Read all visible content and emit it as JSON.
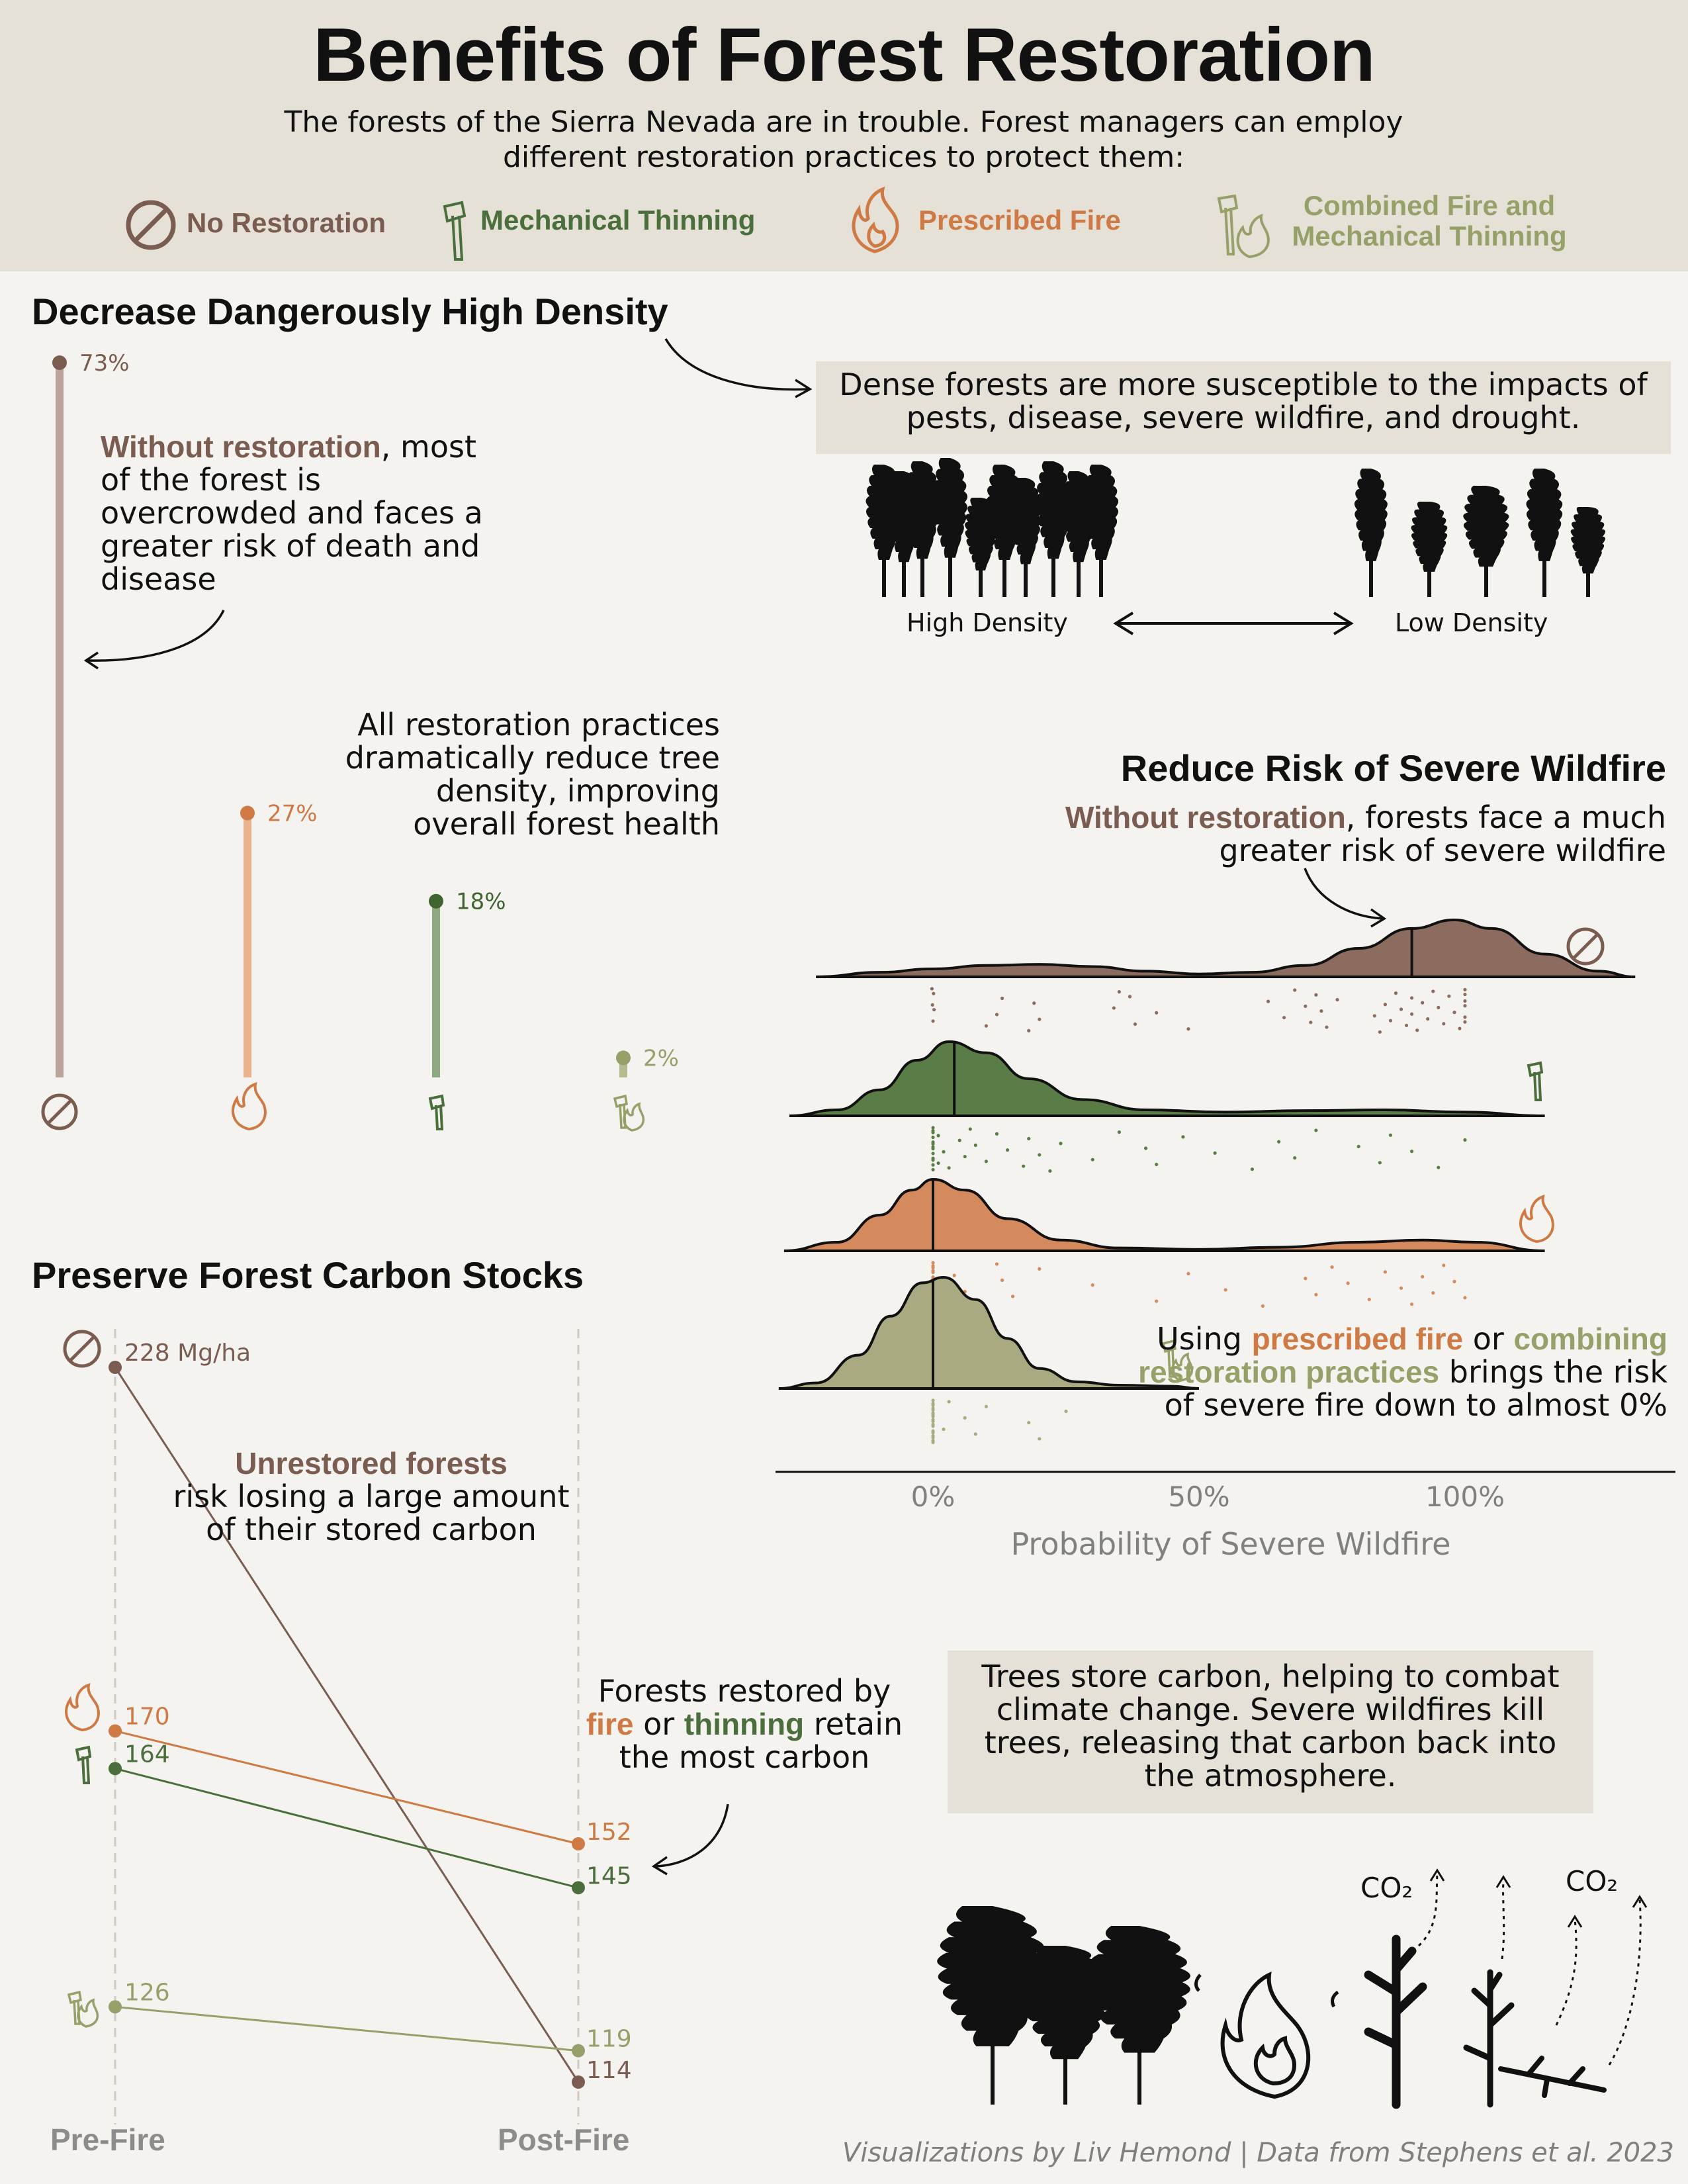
{
  "title": "Benefits of Forest Restoration",
  "subtitle": "The forests of the Sierra Nevada are in trouble. Forest managers can employ different restoration practices to protect them:",
  "legend": [
    {
      "label": "No Restoration",
      "color": "#7a5c50",
      "icon": "no-restoration-icon"
    },
    {
      "label": "Mechanical Thinning",
      "color": "#4a6e3c",
      "icon": "axe-icon"
    },
    {
      "label": "Prescribed Fire",
      "color": "#cf7a45",
      "icon": "fire-icon"
    },
    {
      "label": "Combined Fire and Mechanical Thinning",
      "color": "#98a06a",
      "icon": "axe-fire-icon"
    }
  ],
  "density": {
    "title": "Decrease Dangerously High Density",
    "box_text": "Dense forests are more susceptible to the impacts of pests, disease, severe wildfire, and drought.",
    "high_label": "High Density",
    "low_label": "Low Density",
    "note1_bold": "Without restoration",
    "note1_rest": ", most of the forest is overcrowded and faces a greater risk of death and disease",
    "note2": "All restoration practices dramatically reduce tree density, improving overall forest health"
  },
  "wildfire": {
    "title": "Reduce Risk of Severe Wildfire",
    "note1_bold": "Without restoration",
    "note1_rest": ", forests face a much greater risk of severe wildfire",
    "note2_pre": "Using ",
    "note2_fire": "prescribed fire",
    "note2_or": " or ",
    "note2_comb": "combining restoration practices",
    "note2_post": " brings the risk of severe fire down to almost 0%"
  },
  "carbon": {
    "title": "Preserve Forest Carbon Stocks",
    "note1_bold": "Unrestored forests",
    "note1_rest": "risk losing a large amount of their stored carbon",
    "note2_pre": "Forests restored by ",
    "note2_fire": "fire",
    "note2_or": " or ",
    "note2_thin": "thinning",
    "note2_post": " retain the most carbon",
    "box_text": "Trees store carbon, helping to combat climate change. Severe wildfires kill trees, releasing that carbon back into the atmosphere.",
    "co2_label": "CO₂"
  },
  "credit": "Visualizations by Liv Hemond | Data from Stephens et al. 2023",
  "chart_data": [
    {
      "type": "bar",
      "title": "Decrease Dangerously High Density",
      "categories": [
        "No Restoration",
        "Prescribed Fire",
        "Mechanical Thinning",
        "Combined Fire and Mechanical Thinning"
      ],
      "values": [
        73,
        27,
        18,
        2
      ],
      "labels": [
        "73%",
        "27%",
        "18%",
        "2%"
      ],
      "colors": [
        "#b9a39a",
        "#e8b38d",
        "#8faa80",
        "#b6ba8f"
      ],
      "dot_colors": [
        "#7a5c50",
        "#cf7a45",
        "#3f6530",
        "#98a06a"
      ],
      "ylim": [
        0,
        73
      ]
    },
    {
      "type": "area",
      "title": "Reduce Risk of Severe Wildfire",
      "xlabel": "Probability of Severe Wildfire",
      "xticks": [
        "0%",
        "50%",
        "100%"
      ],
      "xtick_values": [
        0,
        50,
        100
      ],
      "xlim": [
        -30,
        138
      ],
      "series": [
        {
          "name": "No Restoration",
          "color": "#8b6c5e",
          "median": 90,
          "density": [
            [
              -22,
              0
            ],
            [
              -10,
              0.08
            ],
            [
              0,
              0.14
            ],
            [
              10,
              0.2
            ],
            [
              20,
              0.22
            ],
            [
              30,
              0.18
            ],
            [
              40,
              0.1
            ],
            [
              50,
              0.05
            ],
            [
              60,
              0.08
            ],
            [
              70,
              0.2
            ],
            [
              80,
              0.5
            ],
            [
              90,
              0.85
            ],
            [
              98,
              1.0
            ],
            [
              105,
              0.85
            ],
            [
              115,
              0.4
            ],
            [
              125,
              0.1
            ],
            [
              132,
              0
            ]
          ],
          "points": [
            -0.2,
            -0.1,
            0,
            0.1,
            0.2,
            10,
            13,
            12,
            18,
            19,
            20,
            35,
            34,
            38,
            37,
            42,
            48,
            63,
            66,
            68,
            70,
            71,
            72,
            73,
            74,
            76,
            83,
            84,
            85,
            86,
            87,
            88,
            89,
            90,
            90,
            91,
            92,
            93,
            94,
            95,
            96,
            97,
            98,
            99,
            100,
            100,
            100,
            100,
            100,
            100
          ]
        },
        {
          "name": "Mechanical Thinning",
          "color": "#5a7d48",
          "median": 4,
          "density": [
            [
              -27,
              0
            ],
            [
              -18,
              0.08
            ],
            [
              -10,
              0.35
            ],
            [
              -3,
              0.75
            ],
            [
              3,
              1.0
            ],
            [
              10,
              0.85
            ],
            [
              18,
              0.5
            ],
            [
              28,
              0.22
            ],
            [
              40,
              0.08
            ],
            [
              55,
              0.05
            ],
            [
              70,
              0.07
            ],
            [
              85,
              0.08
            ],
            [
              100,
              0.05
            ],
            [
              115,
              0
            ]
          ],
          "points": [
            0,
            0,
            0,
            0,
            0,
            0,
            0,
            0,
            0,
            0,
            0,
            0,
            0,
            1,
            1,
            2,
            3,
            5,
            6,
            7,
            8,
            10,
            12,
            14,
            17,
            18,
            20,
            22,
            24,
            30,
            35,
            40,
            42,
            47,
            53,
            60,
            65,
            68,
            72,
            80,
            84,
            86,
            90,
            95,
            100
          ]
        },
        {
          "name": "Prescribed Fire",
          "color": "#d58a5d",
          "median": 0,
          "density": [
            [
              -28,
              0
            ],
            [
              -18,
              0.12
            ],
            [
              -10,
              0.5
            ],
            [
              -4,
              0.85
            ],
            [
              0,
              1.0
            ],
            [
              6,
              0.85
            ],
            [
              14,
              0.45
            ],
            [
              24,
              0.15
            ],
            [
              35,
              0.04
            ],
            [
              50,
              0.02
            ],
            [
              65,
              0.05
            ],
            [
              80,
              0.12
            ],
            [
              92,
              0.15
            ],
            [
              102,
              0.12
            ],
            [
              115,
              0
            ]
          ],
          "points": [
            0,
            0,
            0,
            0,
            0,
            0,
            0,
            0,
            0,
            0,
            0,
            0,
            0,
            0,
            0,
            0,
            1,
            4,
            6,
            12,
            13,
            15,
            20,
            30,
            42,
            48,
            55,
            62,
            70,
            72,
            75,
            78,
            82,
            85,
            88,
            90,
            92,
            94,
            96,
            98,
            100
          ]
        },
        {
          "name": "Combined Fire and Mechanical Thinning",
          "color": "#a9aa82",
          "median": 0,
          "density": [
            [
              -29,
              0
            ],
            [
              -22,
              0.05
            ],
            [
              -14,
              0.3
            ],
            [
              -8,
              0.65
            ],
            [
              -2,
              0.95
            ],
            [
              2,
              1.0
            ],
            [
              8,
              0.8
            ],
            [
              14,
              0.45
            ],
            [
              20,
              0.18
            ],
            [
              27,
              0.06
            ],
            [
              35,
              0.03
            ],
            [
              45,
              0.02
            ],
            [
              50,
              0
            ]
          ],
          "points": [
            0,
            0,
            0,
            0,
            0,
            0,
            0,
            0,
            0,
            0,
            0,
            0,
            0,
            0,
            0,
            0,
            0,
            0,
            2,
            3,
            6,
            8,
            10,
            18,
            20,
            25
          ]
        }
      ]
    },
    {
      "type": "line",
      "title": "Preserve Forest Carbon Stocks",
      "categories": [
        "Pre-Fire",
        "Post-Fire"
      ],
      "unit": "Mg/ha",
      "ylim": [
        100,
        240
      ],
      "series": [
        {
          "name": "No Restoration",
          "color": "#7a5c50",
          "values": [
            228,
            114
          ],
          "labels": [
            "228 Mg/ha",
            "114"
          ]
        },
        {
          "name": "Prescribed Fire",
          "color": "#cf7a45",
          "values": [
            170,
            152
          ],
          "labels": [
            "170",
            "152"
          ]
        },
        {
          "name": "Mechanical Thinning",
          "color": "#4a6e3c",
          "values": [
            164,
            145
          ],
          "labels": [
            "164",
            "145"
          ]
        },
        {
          "name": "Combined Fire and Mechanical Thinning",
          "color": "#98a06a",
          "values": [
            126,
            119
          ],
          "labels": [
            "126",
            "119"
          ]
        }
      ]
    }
  ]
}
